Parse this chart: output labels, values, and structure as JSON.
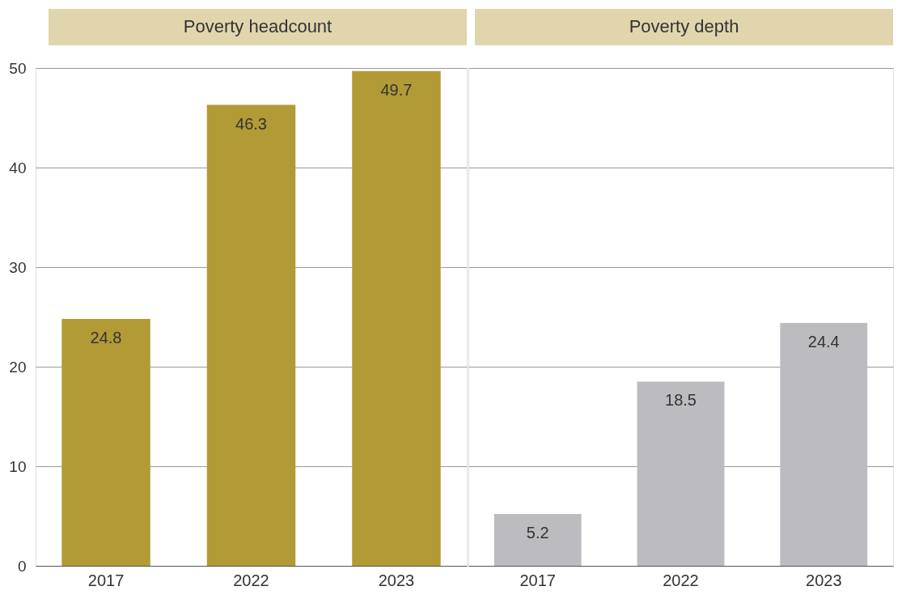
{
  "chart_data": [
    {
      "type": "bar",
      "title": "Poverty headcount",
      "categories": [
        "2017",
        "2022",
        "2023"
      ],
      "values": [
        24.8,
        46.3,
        49.7
      ],
      "color": "#b29a36",
      "ylim": [
        0,
        50
      ],
      "yticks": [
        0,
        10,
        20,
        30,
        40,
        50
      ],
      "grid": "y",
      "data_labels": true
    },
    {
      "type": "bar",
      "title": "Poverty depth",
      "categories": [
        "2017",
        "2022",
        "2023"
      ],
      "values": [
        5.2,
        18.5,
        24.4
      ],
      "color": "#bcbcc0",
      "ylim": [
        0,
        50
      ],
      "yticks": [
        0,
        10,
        20,
        30,
        40,
        50
      ],
      "grid": "y",
      "data_labels": true,
      "tick_labels": "x"
    }
  ]
}
